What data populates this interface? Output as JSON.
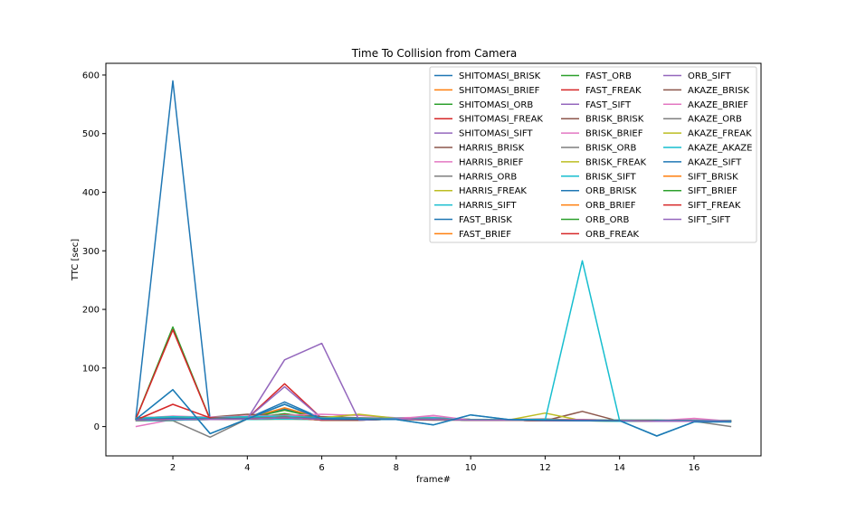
{
  "chart_data": {
    "type": "line",
    "title": "Time To Collision from Camera",
    "xlabel": "frame#",
    "ylabel": "TTC [sec]",
    "xlim": [
      0.2,
      17.8
    ],
    "ylim": [
      -50,
      620
    ],
    "xticks": [
      2,
      4,
      6,
      8,
      10,
      12,
      14,
      16
    ],
    "yticks": [
      0,
      100,
      200,
      300,
      400,
      500,
      600
    ],
    "grid": false,
    "legend_placement": "top-right",
    "legend_columns": 3,
    "x": [
      1,
      2,
      3,
      4,
      5,
      6,
      7,
      8,
      9,
      10,
      11,
      12,
      13,
      14,
      15,
      16,
      17
    ],
    "series": [
      {
        "name": "SHITOMASI_BRISK",
        "color": "#1f77b4",
        "values": [
          12,
          590,
          12,
          13,
          30,
          12,
          12,
          12,
          12,
          11,
          11,
          10,
          10,
          10,
          9,
          9,
          9
        ]
      },
      {
        "name": "SHITOMASI_BRIEF",
        "color": "#ff7f0e",
        "values": [
          13,
          15,
          14,
          14,
          22,
          14,
          13,
          12,
          13,
          11,
          11,
          11,
          10,
          10,
          10,
          9,
          9
        ]
      },
      {
        "name": "SHITOMASI_ORB",
        "color": "#2ca02c",
        "values": [
          12,
          170,
          12,
          14,
          22,
          13,
          13,
          12,
          13,
          11,
          11,
          10,
          10,
          10,
          9,
          9,
          9
        ]
      },
      {
        "name": "SHITOMASI_FREAK",
        "color": "#d62728",
        "values": [
          12,
          165,
          12,
          14,
          20,
          13,
          13,
          12,
          13,
          11,
          11,
          10,
          10,
          10,
          9,
          9,
          9
        ]
      },
      {
        "name": "SHITOMASI_SIFT",
        "color": "#9467bd",
        "values": [
          12,
          14,
          13,
          13,
          18,
          13,
          12,
          12,
          13,
          11,
          11,
          10,
          10,
          10,
          9,
          9,
          9
        ]
      },
      {
        "name": "HARRIS_BRISK",
        "color": "#8c564b",
        "values": [
          10,
          11,
          12,
          12,
          13,
          12,
          12,
          12,
          11,
          11,
          11,
          10,
          26,
          9,
          9,
          9,
          8
        ]
      },
      {
        "name": "HARRIS_BRIEF",
        "color": "#e377c2",
        "values": [
          0,
          12,
          12,
          13,
          14,
          12,
          12,
          12,
          12,
          11,
          11,
          11,
          10,
          10,
          9,
          10,
          9
        ]
      },
      {
        "name": "HARRIS_ORB",
        "color": "#7f7f7f",
        "values": [
          10,
          10,
          -18,
          13,
          14,
          12,
          12,
          12,
          12,
          11,
          11,
          10,
          10,
          9,
          9,
          9,
          0
        ]
      },
      {
        "name": "HARRIS_FREAK",
        "color": "#bcbd22",
        "values": [
          10,
          11,
          12,
          12,
          13,
          12,
          12,
          12,
          12,
          11,
          11,
          23,
          10,
          9,
          9,
          9,
          8
        ]
      },
      {
        "name": "HARRIS_SIFT",
        "color": "#17becf",
        "values": [
          10,
          11,
          12,
          12,
          13,
          12,
          12,
          12,
          12,
          11,
          11,
          10,
          10,
          9,
          9,
          9,
          8
        ]
      },
      {
        "name": "FAST_BRISK",
        "color": "#1f77b4",
        "values": [
          12,
          14,
          13,
          14,
          42,
          14,
          13,
          13,
          14,
          12,
          12,
          11,
          11,
          11,
          10,
          10,
          10
        ]
      },
      {
        "name": "FAST_BRIEF",
        "color": "#ff7f0e",
        "values": [
          12,
          15,
          13,
          14,
          32,
          14,
          13,
          13,
          14,
          12,
          12,
          11,
          11,
          11,
          10,
          10,
          10
        ]
      },
      {
        "name": "FAST_ORB",
        "color": "#2ca02c",
        "values": [
          12,
          14,
          13,
          14,
          28,
          14,
          13,
          13,
          14,
          12,
          12,
          11,
          11,
          11,
          10,
          10,
          10
        ]
      },
      {
        "name": "FAST_FREAK",
        "color": "#d62728",
        "values": [
          12,
          14,
          13,
          14,
          73,
          14,
          13,
          13,
          14,
          12,
          12,
          11,
          11,
          11,
          10,
          10,
          10
        ]
      },
      {
        "name": "FAST_SIFT",
        "color": "#9467bd",
        "values": [
          12,
          14,
          13,
          14,
          68,
          14,
          13,
          13,
          14,
          12,
          12,
          11,
          11,
          11,
          10,
          10,
          10
        ]
      },
      {
        "name": "BRISK_BRISK",
        "color": "#8c564b",
        "values": [
          15,
          17,
          16,
          21,
          18,
          17,
          15,
          14,
          15,
          12,
          12,
          13,
          11,
          11,
          11,
          11,
          10
        ]
      },
      {
        "name": "BRISK_BRIEF",
        "color": "#e377c2",
        "values": [
          14,
          18,
          16,
          18,
          19,
          21,
          19,
          15,
          16,
          12,
          12,
          12,
          12,
          11,
          11,
          11,
          10
        ]
      },
      {
        "name": "BRISK_ORB",
        "color": "#7f7f7f",
        "values": [
          14,
          16,
          14,
          16,
          17,
          14,
          14,
          13,
          14,
          12,
          12,
          11,
          11,
          11,
          10,
          10,
          10
        ]
      },
      {
        "name": "BRISK_FREAK",
        "color": "#bcbd22",
        "values": [
          14,
          17,
          15,
          17,
          18,
          15,
          21,
          14,
          15,
          12,
          12,
          12,
          11,
          11,
          11,
          10,
          10
        ]
      },
      {
        "name": "BRISK_SIFT",
        "color": "#17becf",
        "values": [
          14,
          17,
          15,
          17,
          18,
          15,
          14,
          14,
          15,
          12,
          12,
          12,
          11,
          11,
          11,
          10,
          10
        ]
      },
      {
        "name": "ORB_BRISK",
        "color": "#1f77b4",
        "values": [
          11,
          13,
          13,
          13,
          16,
          11,
          11,
          13,
          13,
          11,
          11,
          10,
          10,
          10,
          10,
          9,
          9
        ]
      },
      {
        "name": "ORB_BRIEF",
        "color": "#ff7f0e",
        "values": [
          11,
          13,
          13,
          13,
          16,
          11,
          11,
          13,
          13,
          11,
          11,
          10,
          10,
          10,
          10,
          9,
          9
        ]
      },
      {
        "name": "ORB_ORB",
        "color": "#2ca02c",
        "values": [
          11,
          13,
          13,
          13,
          16,
          11,
          11,
          13,
          13,
          11,
          11,
          10,
          10,
          10,
          10,
          9,
          9
        ]
      },
      {
        "name": "ORB_FREAK",
        "color": "#d62728",
        "values": [
          11,
          38,
          15,
          13,
          16,
          11,
          11,
          13,
          13,
          11,
          11,
          10,
          10,
          10,
          10,
          9,
          9
        ]
      },
      {
        "name": "ORB_SIFT",
        "color": "#9467bd",
        "values": [
          11,
          13,
          13,
          13,
          114,
          142,
          11,
          13,
          13,
          11,
          11,
          10,
          10,
          10,
          10,
          9,
          9
        ]
      },
      {
        "name": "AKAZE_BRISK",
        "color": "#8c564b",
        "values": [
          12,
          14,
          13,
          14,
          15,
          14,
          13,
          13,
          12,
          11,
          11,
          11,
          11,
          10,
          10,
          10,
          9
        ]
      },
      {
        "name": "AKAZE_BRIEF",
        "color": "#e377c2",
        "values": [
          12,
          14,
          13,
          14,
          15,
          14,
          13,
          13,
          19,
          11,
          11,
          11,
          11,
          10,
          10,
          14,
          9
        ]
      },
      {
        "name": "AKAZE_ORB",
        "color": "#7f7f7f",
        "values": [
          12,
          14,
          13,
          14,
          15,
          14,
          13,
          13,
          12,
          11,
          11,
          11,
          11,
          10,
          10,
          10,
          9
        ]
      },
      {
        "name": "AKAZE_FREAK",
        "color": "#bcbd22",
        "values": [
          12,
          14,
          13,
          14,
          15,
          14,
          13,
          13,
          12,
          11,
          11,
          11,
          11,
          10,
          10,
          10,
          9
        ]
      },
      {
        "name": "AKAZE_AKAZE",
        "color": "#17becf",
        "values": [
          12,
          14,
          13,
          14,
          15,
          14,
          13,
          13,
          12,
          11,
          11,
          11,
          11,
          10,
          10,
          10,
          9
        ]
      },
      {
        "name": "AKAZE_SIFT",
        "color": "#1f77b4",
        "values": [
          12,
          14,
          13,
          14,
          15,
          14,
          13,
          13,
          12,
          11,
          11,
          11,
          11,
          10,
          10,
          10,
          9
        ]
      },
      {
        "name": "SIFT_BRISK",
        "color": "#ff7f0e",
        "values": [
          11,
          12,
          12,
          13,
          15,
          12,
          12,
          13,
          12,
          11,
          11,
          11,
          11,
          10,
          9,
          9,
          9
        ]
      },
      {
        "name": "SIFT_BRIEF",
        "color": "#2ca02c",
        "values": [
          11,
          12,
          12,
          13,
          15,
          12,
          12,
          13,
          12,
          11,
          11,
          11,
          11,
          10,
          9,
          9,
          9
        ]
      },
      {
        "name": "SIFT_FREAK",
        "color": "#d62728",
        "values": [
          11,
          12,
          12,
          13,
          15,
          12,
          12,
          13,
          12,
          11,
          11,
          11,
          11,
          10,
          9,
          9,
          9
        ]
      },
      {
        "name": "SIFT_SIFT",
        "color": "#9467bd",
        "values": [
          11,
          12,
          12,
          13,
          15,
          12,
          12,
          13,
          12,
          11,
          11,
          11,
          11,
          10,
          9,
          9,
          9
        ]
      },
      {
        "name": "",
        "color": "#17becf",
        "values": [
          12,
          63,
          -12,
          13,
          38,
          13,
          12,
          12,
          3,
          20,
          12,
          11,
          283,
          10,
          -16,
          8,
          8
        ]
      },
      {
        "name": "",
        "color": "#1f77b4",
        "values": [
          12,
          63,
          -12,
          13,
          38,
          13,
          12,
          12,
          3,
          20,
          12,
          11,
          10,
          10,
          -16,
          8,
          8
        ]
      }
    ]
  }
}
